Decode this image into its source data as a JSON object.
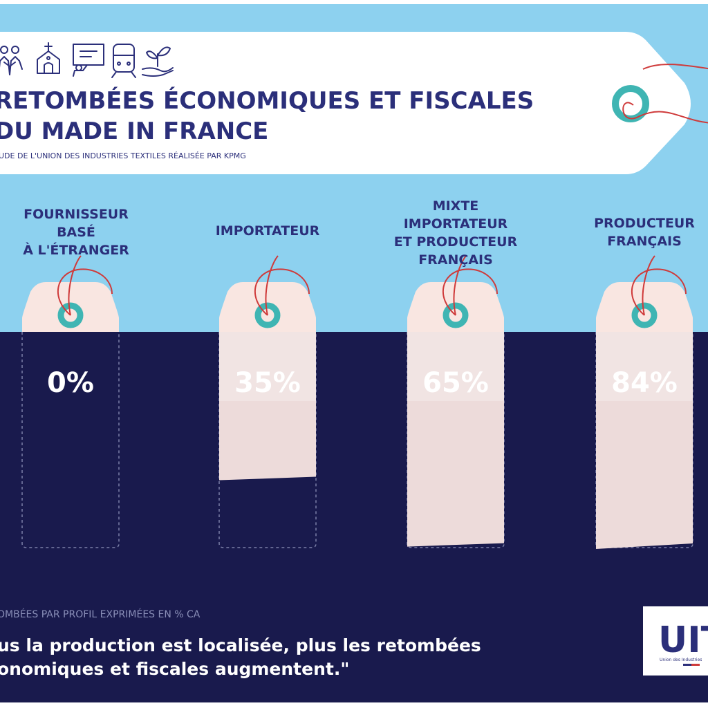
{
  "header": {
    "title_line1": "RETOMBÉES ÉCONOMIQUES ET FISCALES",
    "title_line2": "DU MADE IN FRANCE",
    "subtitle": "UDE DE L'UNION DES INDUSTRIES TEXTILES RÉALISÉE PAR KPMG",
    "icons": [
      "people-icon",
      "church-icon",
      "presentation-icon",
      "train-icon",
      "plant-hand-icon"
    ]
  },
  "footer": {
    "caption": "OMBÉES PAR PROFIL EXPRIMÉES EN % CA",
    "quote_line1": "us la production est localisée, plus les retombées",
    "quote_line2": "onomiques et fiscales augmentent.\"",
    "logo_text": "UIT",
    "logo_subtext": "Union des Industries"
  },
  "colors": {
    "sky": "#8dd1ef",
    "navy": "#191a4d",
    "title_navy": "#2b2f7a",
    "tag_pink": "#f9e6e1",
    "ring_teal": "#3fb5b3",
    "string_red": "#cf3a3a",
    "white": "#ffffff"
  },
  "chart_data": {
    "type": "bar",
    "categories": [
      [
        "FOURNISSEUR",
        "BASÉ",
        "À L'ÉTRANGER"
      ],
      [
        "IMPORTATEUR"
      ],
      [
        "MIXTE",
        "IMPORTATEUR",
        "ET PRODUCTEUR",
        "FRANÇAIS"
      ],
      [
        "PRODUCTEUR",
        "FRANÇAIS"
      ]
    ],
    "values": [
      0,
      35,
      65,
      84
    ],
    "value_labels": [
      "0%",
      "35%",
      "65%",
      "84%"
    ],
    "unit": "%",
    "ylim": [
      0,
      100
    ],
    "caption": "OMBÉES PAR PROFIL EXPRIMÉES EN % CA"
  }
}
